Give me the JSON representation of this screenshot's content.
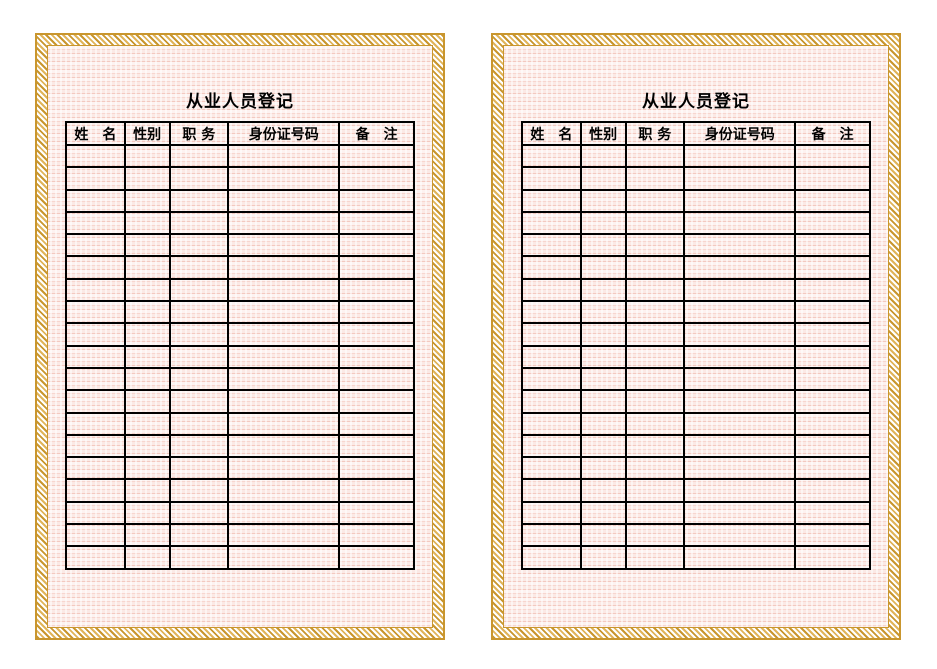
{
  "pages": [
    {
      "title": "从业人员登记",
      "headers": [
        "姓　名",
        "性别",
        "职 务",
        "身份证号码",
        "备　注"
      ],
      "row_count": 19
    },
    {
      "title": "从业人员登记",
      "headers": [
        "姓　名",
        "性别",
        "职 务",
        "身份证号码",
        "备　注"
      ],
      "row_count": 19
    }
  ],
  "colors": {
    "border_gold": "#c9962e",
    "pattern_pink": "#f3c9c0",
    "grid": "#000000"
  }
}
